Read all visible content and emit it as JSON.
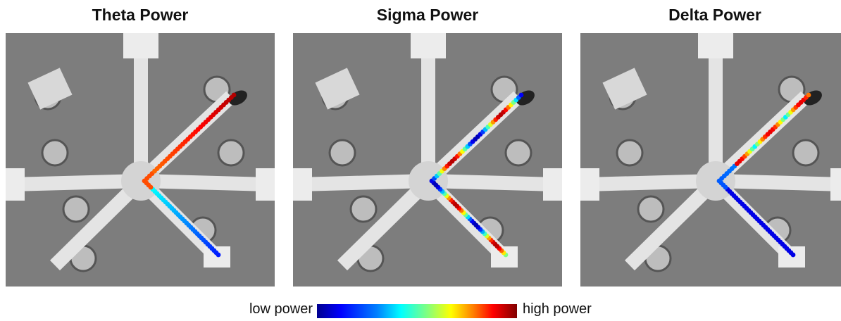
{
  "panels": [
    {
      "title": "Theta Power"
    },
    {
      "title": "Sigma Power"
    },
    {
      "title": "Delta Power"
    }
  ],
  "colorbar": {
    "low_label": "low power",
    "high_label": "high power"
  }
}
